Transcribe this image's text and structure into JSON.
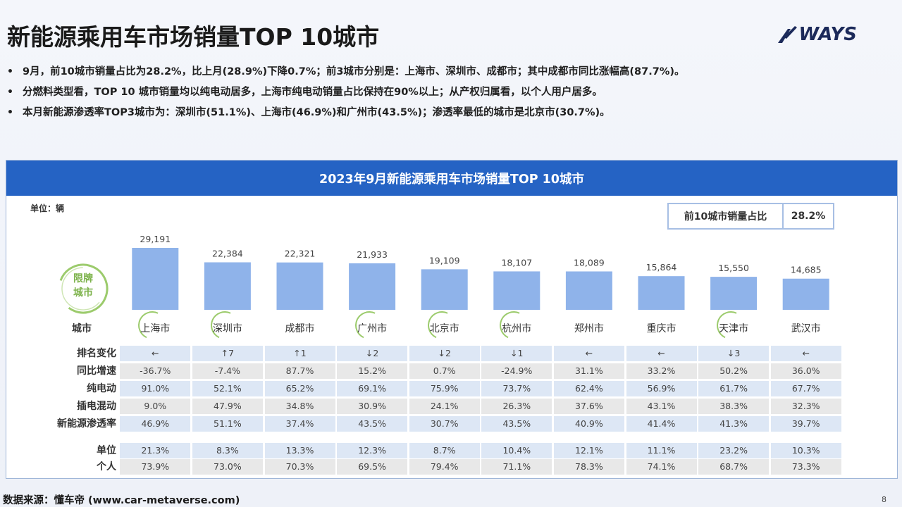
{
  "title": "新能源乘用车市场销量TOP 10城市",
  "logo": {
    "text": "WAYS"
  },
  "bullets": [
    "9月，前10城市销量占比为28.2%，比上月(28.9%)下降0.7%；前3城市分别是：上海市、深圳市、成都市；其中成都市同比涨幅高(87.7%)。",
    "分燃料类型看，TOP 10 城市销量均以纯电动居多，上海市纯电动销量占比保持在90%以上；从产权归属看，以个人用户居多。",
    "本月新能源渗透率TOP3城市为：深圳市(51.1%)、上海市(46.9%)和广州市(43.5%)；渗透率最低的城市是北京市(30.7%)。"
  ],
  "panel": {
    "header": "2023年9月新能源乘用车市场销量TOP 10城市",
    "unit_label": "单位：辆",
    "share_label": "前10城市销量占比",
    "share_value": "28.2%",
    "restrict_badge": "限牌\n城市"
  },
  "chart_data": {
    "type": "bar",
    "title": "2023年9月新能源乘用车市场销量TOP 10城市",
    "ylabel": "单位：辆",
    "categories": [
      "上海市",
      "深圳市",
      "成都市",
      "广州市",
      "北京市",
      "杭州市",
      "郑州市",
      "重庆市",
      "天津市",
      "武汉市"
    ],
    "values": [
      29191,
      22384,
      22321,
      21933,
      19109,
      18107,
      18089,
      15864,
      15550,
      14685
    ],
    "value_labels": [
      "29,191",
      "22,384",
      "22,321",
      "21,933",
      "19,109",
      "18,107",
      "18,089",
      "15,864",
      "15,550",
      "14,685"
    ],
    "restricted_cities": [
      true,
      true,
      false,
      true,
      true,
      true,
      false,
      false,
      true,
      false
    ],
    "bar_color": "#8fb3ea",
    "ylim": [
      0,
      30000
    ]
  },
  "table": {
    "city_row_label": "城市",
    "rows": [
      {
        "label": "排名变化",
        "style": "blue",
        "values": [
          "←",
          "↑7",
          "↑1",
          "↓2",
          "↓2",
          "↓1",
          "←",
          "←",
          "↓3",
          "←"
        ]
      },
      {
        "label": "同比增速",
        "style": "grey",
        "values": [
          "-36.7%",
          "-7.4%",
          "87.7%",
          "15.2%",
          "0.7%",
          "-24.9%",
          "31.1%",
          "33.2%",
          "50.2%",
          "36.0%"
        ]
      },
      {
        "label": "纯电动",
        "style": "blue",
        "values": [
          "91.0%",
          "52.1%",
          "65.2%",
          "69.1%",
          "75.9%",
          "73.7%",
          "62.4%",
          "56.9%",
          "61.7%",
          "67.7%"
        ]
      },
      {
        "label": "插电混动",
        "style": "grey",
        "values": [
          "9.0%",
          "47.9%",
          "34.8%",
          "30.9%",
          "24.1%",
          "26.3%",
          "37.6%",
          "43.1%",
          "38.3%",
          "32.3%"
        ]
      },
      {
        "label": "新能源渗透率",
        "style": "blue",
        "values": [
          "46.9%",
          "51.1%",
          "37.4%",
          "43.5%",
          "30.7%",
          "43.5%",
          "40.9%",
          "41.4%",
          "41.3%",
          "39.7%"
        ]
      },
      {
        "label": "单位",
        "style": "blue",
        "values": [
          "21.3%",
          "8.3%",
          "13.3%",
          "12.3%",
          "8.7%",
          "10.4%",
          "12.1%",
          "11.1%",
          "23.2%",
          "10.3%"
        ]
      },
      {
        "label": "个人",
        "style": "grey",
        "values": [
          "73.9%",
          "73.0%",
          "70.3%",
          "69.5%",
          "79.4%",
          "71.1%",
          "78.3%",
          "74.1%",
          "68.7%",
          "73.3%"
        ]
      }
    ]
  },
  "footer": {
    "source": "数据来源：懂车帝 (www.car-metaverse.com)",
    "page": "8"
  }
}
